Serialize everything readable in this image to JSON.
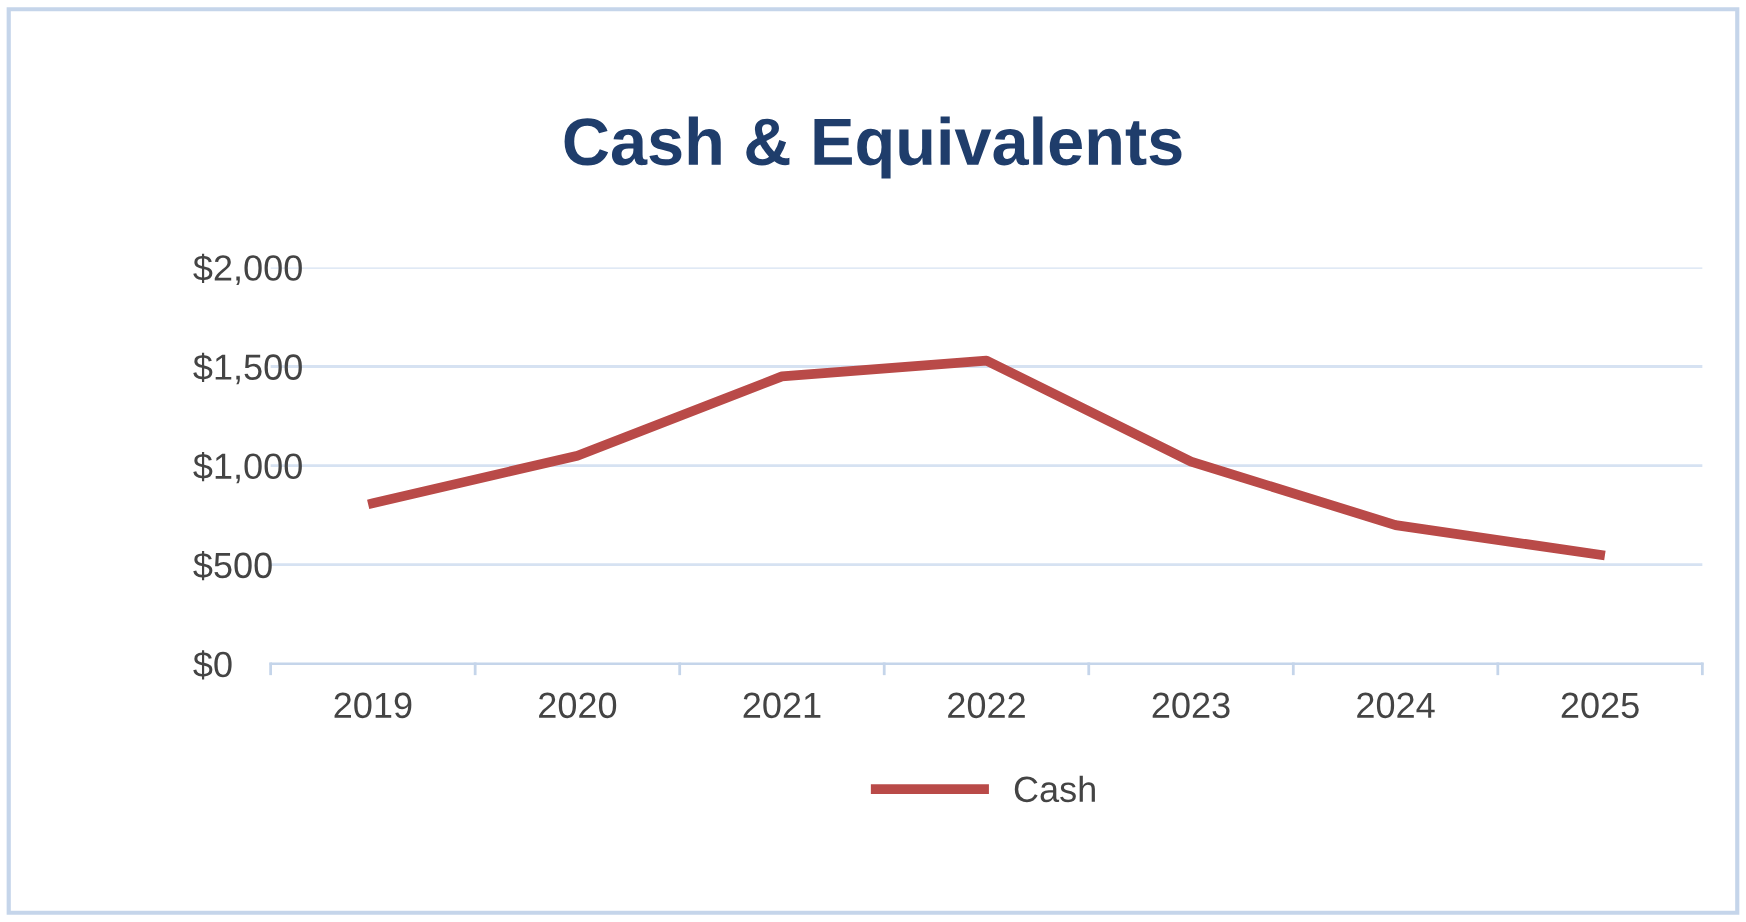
{
  "chart_data": {
    "type": "line",
    "title": "Cash & Equivalents",
    "categories": [
      "2019",
      "2020",
      "2021",
      "2022",
      "2023",
      "2024",
      "2025"
    ],
    "series": [
      {
        "name": "Cash",
        "color": "#b94a48",
        "values": [
          810,
          1050,
          1450,
          1530,
          1020,
          700,
          550
        ]
      }
    ],
    "ylim": [
      0,
      2000
    ],
    "yticks": [
      {
        "value": 0,
        "label": "$0"
      },
      {
        "value": 500,
        "label": "$500"
      },
      {
        "value": 1000,
        "label": "$1,000"
      },
      {
        "value": 1500,
        "label": "$1,500"
      },
      {
        "value": 2000,
        "label": "$2,000"
      }
    ],
    "grid": "y",
    "legend": "bottom",
    "marker": "none",
    "line_style": "solid"
  }
}
